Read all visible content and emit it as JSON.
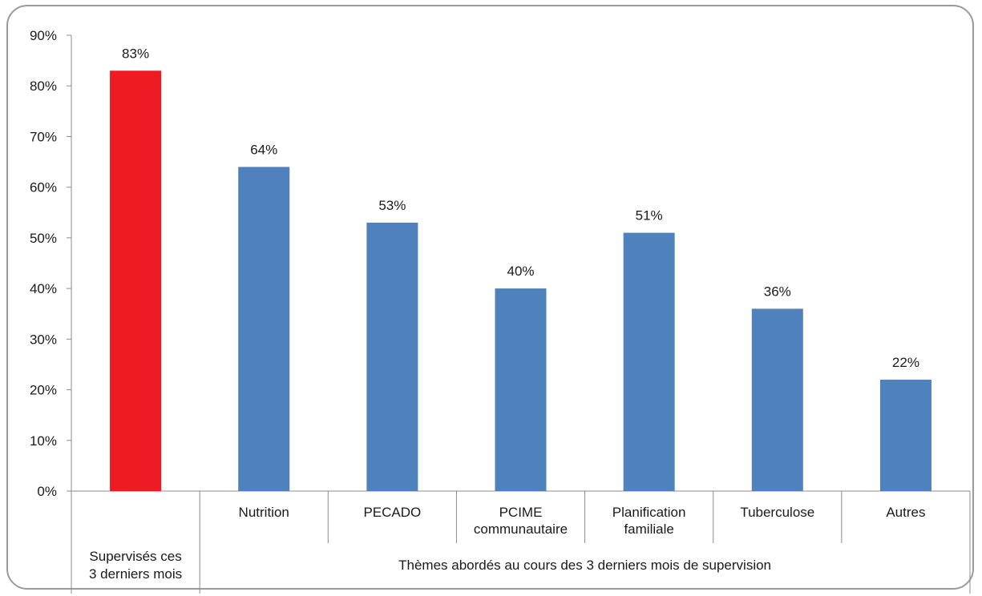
{
  "chart_data": {
    "type": "bar",
    "title": "",
    "ylabel": "",
    "xlabel": "",
    "ylim": [
      0,
      90
    ],
    "y_ticks": [
      0,
      10,
      20,
      30,
      40,
      50,
      60,
      70,
      80,
      90
    ],
    "y_tick_labels": [
      "0%",
      "10%",
      "20%",
      "30%",
      "40%",
      "50%",
      "60%",
      "70%",
      "80%",
      "90%"
    ],
    "categories": [
      [
        "Supervisés ces",
        "3 derniers mois"
      ],
      [
        "Nutrition"
      ],
      [
        "PECADO"
      ],
      [
        "PCIME",
        "communautaire"
      ],
      [
        "Planification",
        "familiale"
      ],
      [
        "Tuberculose"
      ],
      [
        "Autres"
      ]
    ],
    "values": [
      83,
      64,
      53,
      40,
      51,
      36,
      22
    ],
    "data_labels": [
      "83%",
      "64%",
      "53%",
      "40%",
      "51%",
      "36%",
      "22%"
    ],
    "bar_colors": [
      "#ed1c24",
      "#4f81bd",
      "#4f81bd",
      "#4f81bd",
      "#4f81bd",
      "#4f81bd",
      "#4f81bd"
    ],
    "group_label": "Thèmes abordés au cours des 3 derniers mois de supervision",
    "grid": false,
    "legend": "none"
  }
}
